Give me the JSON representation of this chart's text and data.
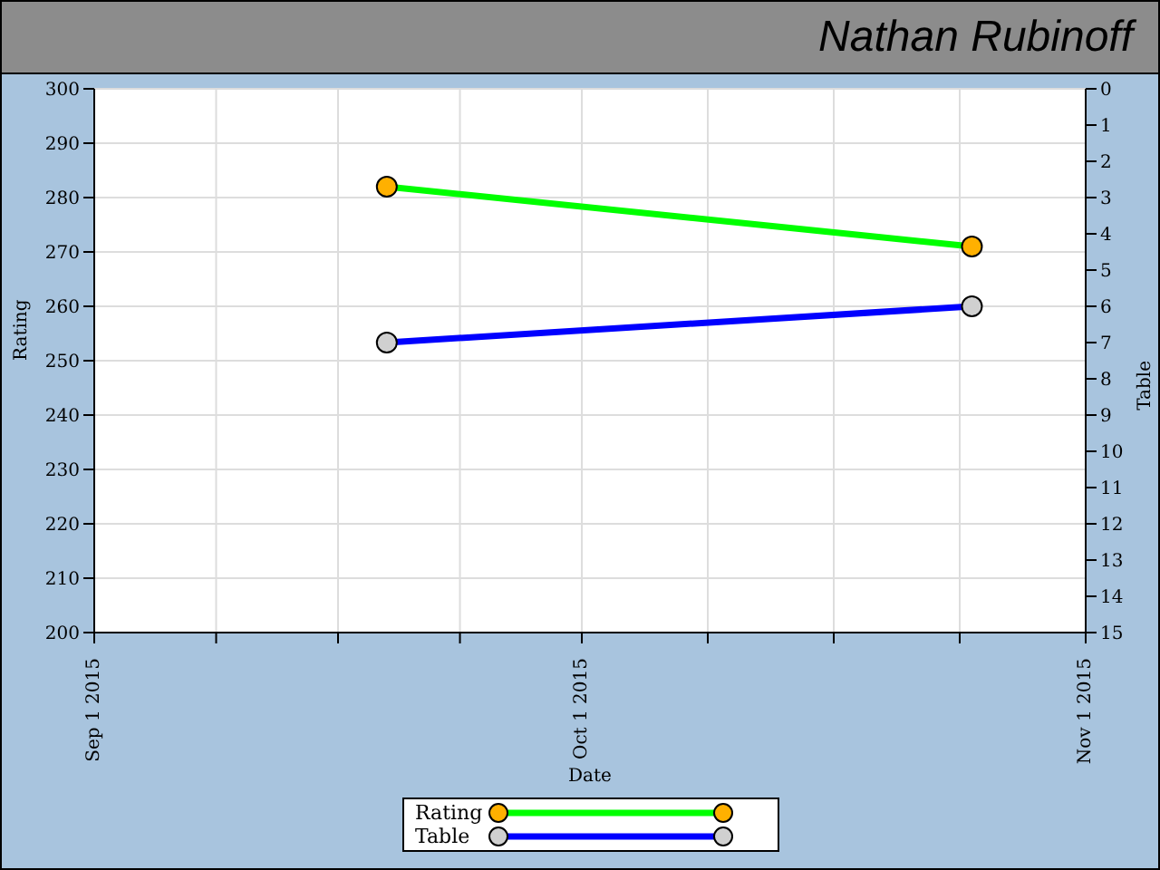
{
  "chart_data": {
    "type": "line",
    "title": "Nathan Rubinoff",
    "xlabel": "Date",
    "ylabel": "Rating",
    "y2label": "Table",
    "series": [
      {
        "name": "Rating",
        "color": "#00ff00",
        "colors": [
          "#ffb000",
          "#ffb000"
        ],
        "x": [
          "2015-09-19",
          "2015-10-25"
        ],
        "values": [
          282,
          271
        ]
      },
      {
        "name": "Table",
        "color": "#0000ff",
        "colors": [
          "#d0d0d0",
          "#d0d0d0"
        ],
        "x": [
          "2015-09-19",
          "2015-10-25"
        ],
        "values": [
          7,
          6
        ],
        "axis": "y2"
      }
    ],
    "xlim": [
      "2015-09-01",
      "2015-11-01"
    ],
    "xticks": [
      {
        "value": "2015-09-01",
        "label": "Sep 1 2015"
      },
      {
        "value": "2015-09-08T12:00",
        "label": null
      },
      {
        "value": "2015-09-16",
        "label": null
      },
      {
        "value": "2015-09-23T12:00",
        "label": null
      },
      {
        "value": "2015-10-01",
        "label": "Oct 1 2015"
      },
      {
        "value": "2015-10-08T18:00",
        "label": null
      },
      {
        "value": "2015-10-16T12:00",
        "label": null
      },
      {
        "value": "2015-10-24T06:00",
        "label": null
      },
      {
        "value": "2015-11-01",
        "label": "Nov 1 2015"
      }
    ],
    "ylim": [
      200,
      300
    ],
    "yticks": [
      200,
      210,
      220,
      230,
      240,
      250,
      260,
      270,
      280,
      290,
      300
    ],
    "y2lim": [
      15,
      0
    ],
    "y2ticks": [
      0,
      1,
      2,
      3,
      4,
      5,
      6,
      7,
      8,
      9,
      10,
      11,
      12,
      13,
      14,
      15
    ],
    "grid": true,
    "legend": "bottom",
    "marker": "circle",
    "line_style": "solid"
  }
}
